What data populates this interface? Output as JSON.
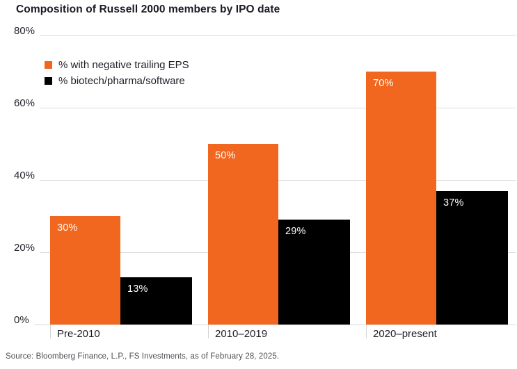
{
  "title": "Composition of Russell 2000 members by IPO date",
  "source": "Source: Bloomberg Finance, L.P., FS Investments, as of February 28, 2025.",
  "colors": {
    "accent_orange": "#F2671F",
    "series_black": "#000000",
    "gridline": "#DBDBDB",
    "title_text": "#1A1A26",
    "axis_text": "#26262E",
    "source_text": "#4F4F56",
    "bar_label_text": "#FFFFFF"
  },
  "legend": [
    {
      "label": "% with negative trailing EPS",
      "color": "#F2671F"
    },
    {
      "label": "% biotech/pharma/software",
      "color": "#000000"
    }
  ],
  "chart_data": {
    "type": "bar",
    "title": "Composition of Russell 2000 members by IPO date",
    "categories": [
      "Pre-2010",
      "2010–2019",
      "2020–present"
    ],
    "series": [
      {
        "name": "% with negative trailing EPS",
        "color": "#F2671F",
        "values": [
          30,
          50,
          70
        ]
      },
      {
        "name": "% biotech/pharma/software",
        "color": "#000000",
        "values": [
          13,
          29,
          37
        ]
      }
    ],
    "bar_labels": [
      [
        "30%",
        "50%",
        "70%"
      ],
      [
        "13%",
        "29%",
        "37%"
      ]
    ],
    "xlabel": "",
    "ylabel": "",
    "ylim": [
      0,
      80
    ],
    "yticks": [
      "80%",
      "60%",
      "40%",
      "20%",
      "0%"
    ],
    "grid": true,
    "legend_position": "inside-top-left"
  }
}
